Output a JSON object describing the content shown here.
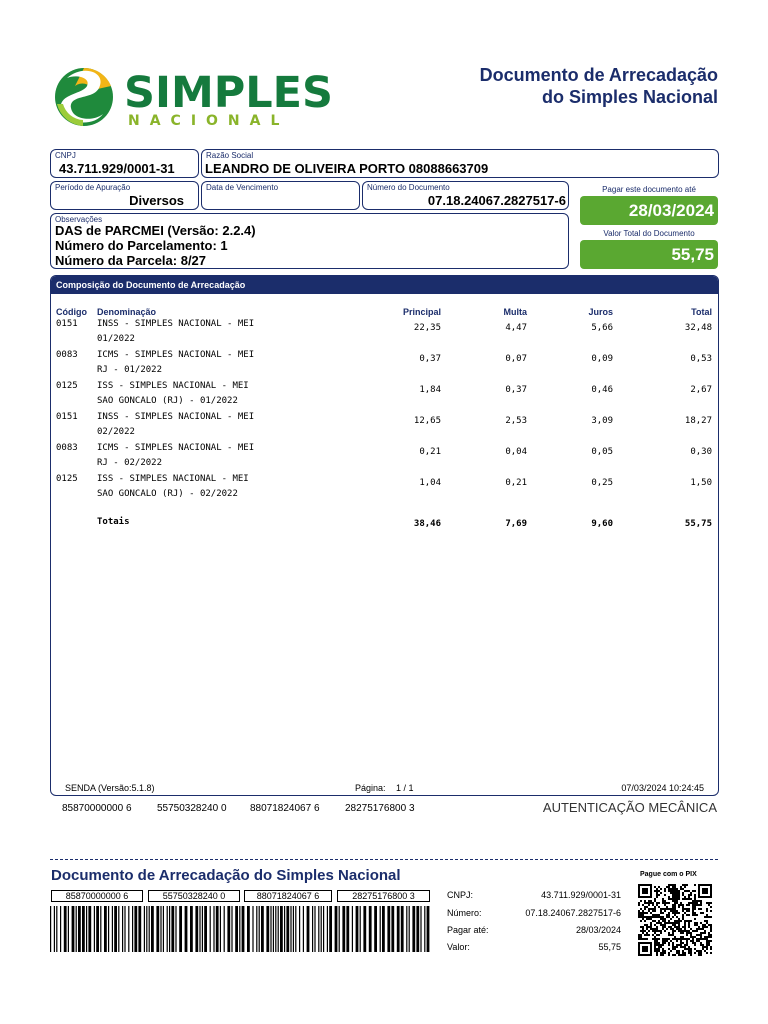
{
  "logo": {
    "word": "SIMPLES",
    "sub": "NACIONAL"
  },
  "header": {
    "title_line1": "Documento de Arrecadação",
    "title_line2": "do Simples Nacional"
  },
  "fields": {
    "cnpj": {
      "label": "CNPJ",
      "value": "43.711.929/0001-31"
    },
    "razao": {
      "label": "Razão Social",
      "value": "LEANDRO DE OLIVEIRA PORTO 08088663709"
    },
    "periodo": {
      "label": "Período de Apuração",
      "value": "Diversos"
    },
    "vencimento": {
      "label": "Data de Vencimento",
      "value": ""
    },
    "numero": {
      "label": "Número do Documento",
      "value": "07.18.24067.2827517-6"
    },
    "pagar_ate": {
      "label": "Pagar este documento até",
      "value": "28/03/2024"
    },
    "valor_total": {
      "label": "Valor Total do Documento",
      "value": "55,75"
    },
    "observacoes": {
      "label": "Observações",
      "lines": [
        "DAS de PARCMEI (Versão: 2.2.4)",
        "Número do Parcelamento: 1",
        "Número da Parcela: 8/27"
      ]
    }
  },
  "composicao": {
    "title": "Composição do Documento de Arrecadação",
    "headers": {
      "codigo": "Código",
      "denominacao": "Denominação",
      "principal": "Principal",
      "multa": "Multa",
      "juros": "Juros",
      "total": "Total"
    },
    "rows": [
      {
        "codigo": "0151",
        "den1": "INSS - SIMPLES NACIONAL - MEI",
        "den2": "01/2022",
        "principal": "22,35",
        "multa": "4,47",
        "juros": "5,66",
        "total": "32,48"
      },
      {
        "codigo": "0083",
        "den1": "ICMS - SIMPLES NACIONAL - MEI",
        "den2": "RJ - 01/2022",
        "principal": "0,37",
        "multa": "0,07",
        "juros": "0,09",
        "total": "0,53"
      },
      {
        "codigo": "0125",
        "den1": "ISS - SIMPLES NACIONAL - MEI",
        "den2": "SAO GONCALO (RJ) - 01/2022",
        "principal": "1,84",
        "multa": "0,37",
        "juros": "0,46",
        "total": "2,67"
      },
      {
        "codigo": "0151",
        "den1": "INSS - SIMPLES NACIONAL - MEI",
        "den2": "02/2022",
        "principal": "12,65",
        "multa": "2,53",
        "juros": "3,09",
        "total": "18,27"
      },
      {
        "codigo": "0083",
        "den1": "ICMS - SIMPLES NACIONAL - MEI",
        "den2": "RJ - 02/2022",
        "principal": "0,21",
        "multa": "0,04",
        "juros": "0,05",
        "total": "0,30"
      },
      {
        "codigo": "0125",
        "den1": "ISS - SIMPLES NACIONAL - MEI",
        "den2": "SAO GONCALO (RJ) - 02/2022",
        "principal": "1,04",
        "multa": "0,21",
        "juros": "0,25",
        "total": "1,50"
      }
    ],
    "totais": {
      "label": "Totais",
      "principal": "38,46",
      "multa": "7,69",
      "juros": "9,60",
      "total": "55,75"
    },
    "footer": {
      "senda": "SENDA (Versão:5.1.8)",
      "pagina_label": "Página:",
      "pagina_value": "1 / 1",
      "timestamp": "07/03/2024 10:24:45"
    }
  },
  "linha_digitavel": [
    "85870000000 6",
    "55750328240 0",
    "88071824067 6",
    "28275176800 3"
  ],
  "autenticacao": "AUTENTICAÇÃO MECÂNICA",
  "bottom": {
    "title": "Documento de Arrecadação do Simples Nacional",
    "pix_label": "Pague com o PIX",
    "info": [
      {
        "key": "CNPJ:",
        "value": "43.711.929/0001-31"
      },
      {
        "key": "Número:",
        "value": "07.18.24067.2827517-6"
      },
      {
        "key": "Pagar até:",
        "value": "28/03/2024"
      },
      {
        "key": "Valor:",
        "value": "55,75"
      }
    ]
  },
  "colors": {
    "navy": "#1b2d6b",
    "green": "#5aa831",
    "logo_green": "#157a3d",
    "logo_yellow": "#f2b517"
  }
}
